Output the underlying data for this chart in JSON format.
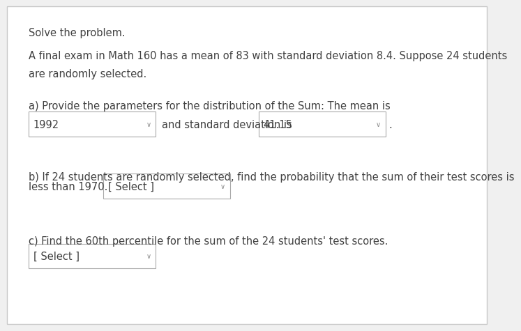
{
  "bg_color": "#f0f0f0",
  "panel_color": "#ffffff",
  "border_color": "#c8c8c8",
  "text_color": "#404040",
  "box_border_color": "#aaaaaa",
  "title": "Solve the problem.",
  "problem_line1": "A final exam in Math 160 has a mean of 83 with standard deviation 8.4. Suppose 24 students",
  "problem_line2": "are randomly selected.",
  "part_a_label": "a) Provide the parameters for the distribution of the Sum: The mean is",
  "box1_value": "1992",
  "between_text": "and standard deviation is",
  "box2_value": "41.15",
  "part_b_line1": "b) If 24 students are randomly selected, find the probability that the sum of their test scores is",
  "part_b_line2": "less than 1970.",
  "select_text": "[ Select ]",
  "part_c_label": "c) Find the 60th percentile for the sum of the 24 students' test scores.",
  "font_size": 10.5
}
